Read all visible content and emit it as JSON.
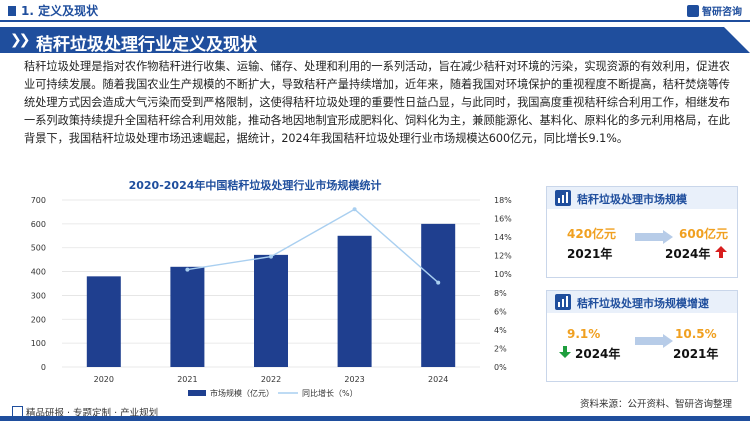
{
  "header": {
    "section": "1. 定义及现状",
    "logo": "智研咨询",
    "title": "秸秆垃圾处理行业定义及现状"
  },
  "paragraph": "秸秆垃圾处理是指对农作物秸秆进行收集、运输、储存、处理和利用的一系列活动，旨在减少秸秆对环境的污染，实现资源的有效利用，促进农业可持续发展。随着我国农业生产规模的不断扩大，导致秸秆产量持续增加，近年来，随着我国对环境保护的重视程度不断提高，秸秆焚烧等传统处理方式因会造成大气污染而受到严格限制，这使得秸秆垃圾处理的重要性日益凸显，与此同时，我国高度重视秸秆综合利用工作，相继发布一系列政策持续提升全国秸秆综合利用效能，推动各地因地制宜形成肥料化、饲料化为主，兼顾能源化、基料化、原料化的多元利用格局，在此背景下，我国秸秆垃圾处理市场迅速崛起，据统计，2024年我国秸秆垃圾处理行业市场规模达600亿元，同比增长9.1%。",
  "chart_data": {
    "type": "bar",
    "title": "2020-2024年中国秸秆垃圾处理行业市场规模统计",
    "categories": [
      "2020",
      "2021",
      "2022",
      "2023",
      "2024"
    ],
    "series": [
      {
        "name": "市场规模（亿元）",
        "type": "bar",
        "axis": "left",
        "values": [
          380,
          420,
          470,
          550,
          600
        ],
        "color": "#1f3f8f"
      },
      {
        "name": "同比增长（%）",
        "type": "line",
        "axis": "right",
        "values": [
          null,
          10.5,
          11.9,
          17.0,
          9.1
        ],
        "color": "#a9cff0"
      }
    ],
    "left_axis": {
      "ylim": [
        0,
        700
      ],
      "ticks": [
        "0",
        "100",
        "200",
        "300",
        "400",
        "500",
        "600",
        "700"
      ]
    },
    "right_axis": {
      "ylim": [
        0,
        18
      ],
      "ticks": [
        "0%",
        "2%",
        "4%",
        "6%",
        "8%",
        "10%",
        "12%",
        "14%",
        "16%",
        "18%"
      ]
    },
    "legend_placement": "bottom"
  },
  "cards": [
    {
      "title": "秸秆垃圾处理市场规模",
      "from_value": "420亿元",
      "from_year": "2021年",
      "to_value": "600亿元",
      "to_year": "2024年",
      "trend": "up",
      "trend_color": "#d81e1e"
    },
    {
      "title": "秸秆垃圾处理市场规模增速",
      "from_value": "9.1%",
      "from_year": "2024年",
      "to_value": "10.5%",
      "to_year": "2021年",
      "trend": "down",
      "trend_color": "#1e9e3e"
    }
  ],
  "footer": {
    "left": "精品研报 · 专题定制 · 产业规划",
    "source": "资料来源：公开资料、智研咨询整理"
  }
}
